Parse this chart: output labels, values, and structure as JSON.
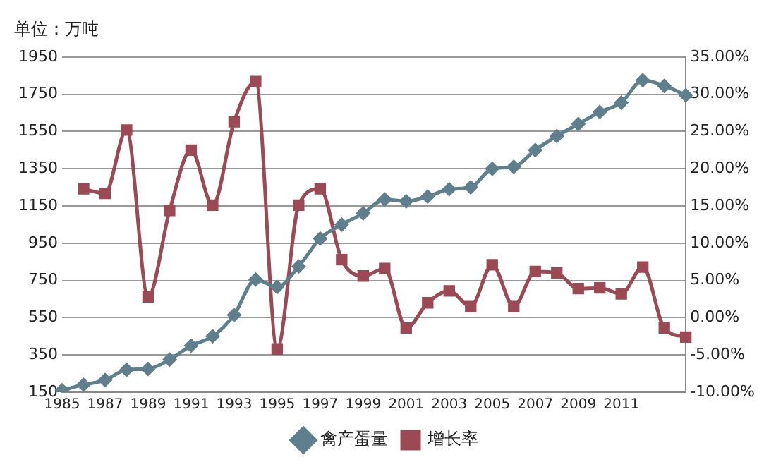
{
  "chart_data": {
    "type": "line",
    "ylabel": "单位：万吨",
    "categories": [
      "1985",
      null,
      "1987",
      null,
      "1989",
      null,
      "1991",
      null,
      "1993",
      null,
      "1995",
      null,
      "1997",
      null,
      "1999",
      null,
      "2001",
      null,
      "2003",
      null,
      "2005",
      null,
      "2007",
      null,
      "2009",
      null,
      "2011",
      null,
      null,
      null
    ],
    "series": [
      {
        "name": "禽产蛋量",
        "color": "#5f7f8c",
        "marker": "diamond",
        "values": [
          160,
          190,
          215,
          270,
          275,
          325,
          400,
          450,
          565,
          755,
          715,
          825,
          975,
          1050,
          1110,
          1185,
          1175,
          1200,
          1240,
          1250,
          1350,
          1360,
          1450,
          1525,
          1590,
          1655,
          1705,
          1825,
          1795,
          1745
        ]
      },
      {
        "name": "增长率",
        "color": "#9b4a55",
        "marker": "square",
        "axis": "y2",
        "values": [
          null,
          17.3,
          16.7,
          25.2,
          2.8,
          14.4,
          22.5,
          15.1,
          26.3,
          31.7,
          -4.2,
          15.1,
          17.3,
          7.8,
          5.6,
          6.6,
          -1.4,
          2.0,
          3.6,
          1.5,
          7.1,
          1.5,
          6.2,
          6.0,
          3.9,
          4.0,
          3.2,
          6.8,
          -1.4,
          -2.6
        ]
      }
    ],
    "ylim": [
      150,
      1950
    ],
    "yticks": [
      150,
      350,
      550,
      750,
      950,
      1150,
      1350,
      1550,
      1750,
      1950
    ],
    "y2lim": [
      -10,
      35
    ],
    "y2ticks": [
      {
        "value": -10,
        "label": "-10.00%"
      },
      {
        "value": -5,
        "label": "-5.00%"
      },
      {
        "value": 0,
        "label": "0.00%"
      },
      {
        "value": 5,
        "label": "5.00%"
      },
      {
        "value": 10,
        "label": "10.00%"
      },
      {
        "value": 15,
        "label": "15.00%"
      },
      {
        "value": 20,
        "label": "20.00%"
      },
      {
        "value": 25,
        "label": "25.00%"
      },
      {
        "value": 30,
        "label": "30.00%"
      },
      {
        "value": 35,
        "label": "35.00%"
      }
    ],
    "grid": "y",
    "legend": "bottom",
    "line_style": "solid"
  }
}
